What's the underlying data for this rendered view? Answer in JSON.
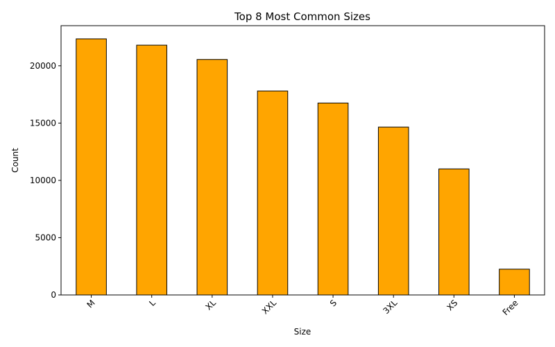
{
  "chart_data": {
    "type": "bar",
    "title": "Top 8 Most Common Sizes",
    "xlabel": "Size",
    "ylabel": "Count",
    "categories": [
      "M",
      "L",
      "XL",
      "XXL",
      "S",
      "3XL",
      "XS",
      "Free"
    ],
    "values": [
      22350,
      21800,
      20550,
      17800,
      16750,
      14650,
      11000,
      2250
    ],
    "ylim": [
      0,
      23500
    ],
    "yticks": [
      0,
      5000,
      10000,
      15000,
      20000
    ],
    "bar_color": "#ffa500",
    "bar_edge_color": "#000000",
    "grid": false,
    "legend": "none"
  }
}
